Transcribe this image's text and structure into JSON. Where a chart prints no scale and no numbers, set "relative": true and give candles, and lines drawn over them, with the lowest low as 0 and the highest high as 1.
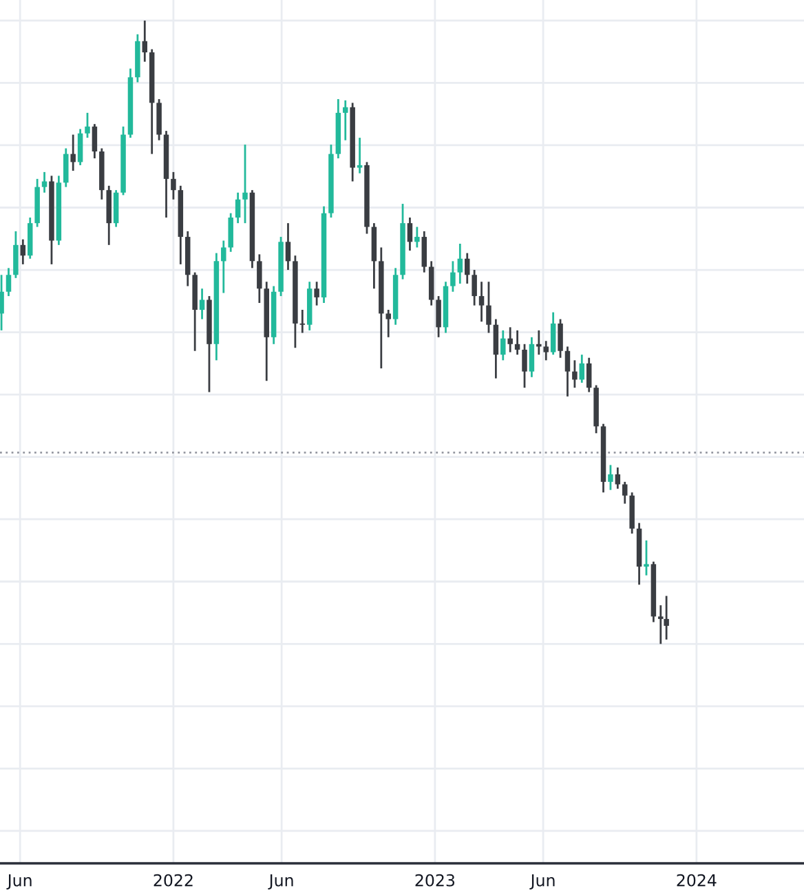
{
  "chart_data": {
    "type": "candlestick",
    "relative": true,
    "grid": true,
    "xlim": [
      "2021-05-04",
      "2024-05-30"
    ],
    "xticks": [
      {
        "value": "2021-06-01",
        "label": "Jun"
      },
      {
        "value": "2022-01-01",
        "label": "2022"
      },
      {
        "value": "2022-06-01",
        "label": "Jun"
      },
      {
        "value": "2023-01-01",
        "label": "2023"
      },
      {
        "value": "2023-06-01",
        "label": "Jun"
      },
      {
        "value": "2024-01-01",
        "label": "2024"
      }
    ],
    "ref_lines": [
      {
        "axis": "y",
        "value": 0.307,
        "color": "#9598a1",
        "line_style": "dotted"
      }
    ],
    "x": [
      "2021-05-06",
      "2021-05-16",
      "2021-05-26",
      "2021-06-05",
      "2021-06-15",
      "2021-06-25",
      "2021-07-05",
      "2021-07-15",
      "2021-07-25",
      "2021-08-04",
      "2021-08-14",
      "2021-08-24",
      "2021-09-03",
      "2021-09-13",
      "2021-09-23",
      "2021-10-03",
      "2021-10-13",
      "2021-10-23",
      "2021-11-02",
      "2021-11-12",
      "2021-11-22",
      "2021-12-02",
      "2021-12-12",
      "2021-12-22",
      "2022-01-01",
      "2022-01-11",
      "2022-01-21",
      "2022-01-31",
      "2022-02-10",
      "2022-02-20",
      "2022-03-02",
      "2022-03-12",
      "2022-03-22",
      "2022-04-01",
      "2022-04-11",
      "2022-04-21",
      "2022-05-01",
      "2022-05-11",
      "2022-05-21",
      "2022-05-31",
      "2022-06-10",
      "2022-06-20",
      "2022-06-30",
      "2022-07-10",
      "2022-07-20",
      "2022-07-30",
      "2022-08-09",
      "2022-08-19",
      "2022-08-29",
      "2022-09-08",
      "2022-09-18",
      "2022-09-28",
      "2022-10-08",
      "2022-10-18",
      "2022-10-28",
      "2022-11-07",
      "2022-11-17",
      "2022-11-27",
      "2022-12-07",
      "2022-12-17",
      "2022-12-27",
      "2023-01-06",
      "2023-01-16",
      "2023-01-26",
      "2023-02-05",
      "2023-02-15",
      "2023-02-25",
      "2023-03-07",
      "2023-03-17",
      "2023-03-27",
      "2023-04-06",
      "2023-04-16",
      "2023-04-26",
      "2023-05-06",
      "2023-05-16",
      "2023-05-26",
      "2023-06-05",
      "2023-06-15",
      "2023-06-25",
      "2023-07-05",
      "2023-07-15",
      "2023-07-25",
      "2023-08-04",
      "2023-08-14",
      "2023-08-24",
      "2023-09-03",
      "2023-09-13",
      "2023-09-23",
      "2023-10-03",
      "2023-10-13",
      "2023-10-23",
      "2023-11-02",
      "2023-11-12",
      "2023-11-20"
    ],
    "ohlc": [
      [
        0.53,
        0.592,
        0.503,
        0.565
      ],
      [
        0.565,
        0.603,
        0.558,
        0.592
      ],
      [
        0.592,
        0.662,
        0.587,
        0.64
      ],
      [
        0.64,
        0.649,
        0.609,
        0.623
      ],
      [
        0.623,
        0.684,
        0.618,
        0.675
      ],
      [
        0.675,
        0.746,
        0.669,
        0.733
      ],
      [
        0.733,
        0.757,
        0.724,
        0.742
      ],
      [
        0.742,
        0.751,
        0.609,
        0.647
      ],
      [
        0.647,
        0.751,
        0.64,
        0.74
      ],
      [
        0.74,
        0.795,
        0.733,
        0.786
      ],
      [
        0.786,
        0.817,
        0.759,
        0.773
      ],
      [
        0.773,
        0.826,
        0.768,
        0.819
      ],
      [
        0.819,
        0.852,
        0.812,
        0.83
      ],
      [
        0.83,
        0.834,
        0.779,
        0.79
      ],
      [
        0.79,
        0.795,
        0.713,
        0.728
      ],
      [
        0.728,
        0.735,
        0.64,
        0.675
      ],
      [
        0.675,
        0.728,
        0.669,
        0.724
      ],
      [
        0.724,
        0.83,
        0.72,
        0.817
      ],
      [
        0.817,
        0.923,
        0.812,
        0.909
      ],
      [
        0.909,
        0.978,
        0.901,
        0.967
      ],
      [
        0.967,
        1.0,
        0.934,
        0.949
      ],
      [
        0.949,
        0.954,
        0.786,
        0.868
      ],
      [
        0.868,
        0.874,
        0.808,
        0.817
      ],
      [
        0.817,
        0.823,
        0.684,
        0.746
      ],
      [
        0.746,
        0.757,
        0.713,
        0.728
      ],
      [
        0.728,
        0.735,
        0.609,
        0.653
      ],
      [
        0.653,
        0.662,
        0.574,
        0.592
      ],
      [
        0.592,
        0.596,
        0.47,
        0.536
      ],
      [
        0.536,
        0.57,
        0.521,
        0.552
      ],
      [
        0.552,
        0.558,
        0.404,
        0.481
      ],
      [
        0.481,
        0.627,
        0.455,
        0.614
      ],
      [
        0.614,
        0.647,
        0.563,
        0.636
      ],
      [
        0.636,
        0.691,
        0.629,
        0.684
      ],
      [
        0.684,
        0.724,
        0.675,
        0.713
      ],
      [
        0.713,
        0.801,
        0.675,
        0.724
      ],
      [
        0.724,
        0.728,
        0.603,
        0.614
      ],
      [
        0.614,
        0.625,
        0.547,
        0.57
      ],
      [
        0.57,
        0.581,
        0.422,
        0.492
      ],
      [
        0.492,
        0.574,
        0.481,
        0.565
      ],
      [
        0.565,
        0.653,
        0.558,
        0.645
      ],
      [
        0.645,
        0.675,
        0.6,
        0.614
      ],
      [
        0.614,
        0.623,
        0.475,
        0.514
      ],
      [
        0.514,
        0.536,
        0.499,
        0.512
      ],
      [
        0.512,
        0.581,
        0.503,
        0.57
      ],
      [
        0.57,
        0.581,
        0.543,
        0.556
      ],
      [
        0.556,
        0.702,
        0.547,
        0.691
      ],
      [
        0.691,
        0.801,
        0.684,
        0.786
      ],
      [
        0.786,
        0.874,
        0.779,
        0.852
      ],
      [
        0.852,
        0.872,
        0.808,
        0.861
      ],
      [
        0.861,
        0.868,
        0.742,
        0.764
      ],
      [
        0.764,
        0.812,
        0.755,
        0.768
      ],
      [
        0.768,
        0.773,
        0.658,
        0.669
      ],
      [
        0.669,
        0.675,
        0.57,
        0.614
      ],
      [
        0.614,
        0.636,
        0.442,
        0.53
      ],
      [
        0.53,
        0.536,
        0.492,
        0.521
      ],
      [
        0.521,
        0.603,
        0.512,
        0.592
      ],
      [
        0.592,
        0.706,
        0.585,
        0.675
      ],
      [
        0.675,
        0.684,
        0.631,
        0.645
      ],
      [
        0.645,
        0.669,
        0.636,
        0.653
      ],
      [
        0.653,
        0.662,
        0.596,
        0.605
      ],
      [
        0.605,
        0.614,
        0.543,
        0.552
      ],
      [
        0.552,
        0.558,
        0.492,
        0.508
      ],
      [
        0.508,
        0.581,
        0.499,
        0.574
      ],
      [
        0.574,
        0.614,
        0.565,
        0.596
      ],
      [
        0.596,
        0.642,
        0.578,
        0.618
      ],
      [
        0.618,
        0.627,
        0.578,
        0.592
      ],
      [
        0.592,
        0.6,
        0.543,
        0.558
      ],
      [
        0.558,
        0.581,
        0.517,
        0.543
      ],
      [
        0.543,
        0.581,
        0.499,
        0.512
      ],
      [
        0.512,
        0.521,
        0.426,
        0.464
      ],
      [
        0.464,
        0.503,
        0.455,
        0.49
      ],
      [
        0.49,
        0.508,
        0.468,
        0.481
      ],
      [
        0.481,
        0.503,
        0.464,
        0.472
      ],
      [
        0.472,
        0.481,
        0.411,
        0.437
      ],
      [
        0.437,
        0.492,
        0.428,
        0.481
      ],
      [
        0.481,
        0.503,
        0.464,
        0.477
      ],
      [
        0.477,
        0.486,
        0.455,
        0.468
      ],
      [
        0.468,
        0.532,
        0.464,
        0.514
      ],
      [
        0.514,
        0.521,
        0.459,
        0.47
      ],
      [
        0.47,
        0.477,
        0.397,
        0.437
      ],
      [
        0.437,
        0.455,
        0.411,
        0.424
      ],
      [
        0.424,
        0.464,
        0.419,
        0.45
      ],
      [
        0.45,
        0.459,
        0.404,
        0.411
      ],
      [
        0.411,
        0.415,
        0.338,
        0.349
      ],
      [
        0.349,
        0.353,
        0.243,
        0.26
      ],
      [
        0.26,
        0.287,
        0.247,
        0.272
      ],
      [
        0.272,
        0.283,
        0.249,
        0.256
      ],
      [
        0.256,
        0.26,
        0.225,
        0.238
      ],
      [
        0.238,
        0.243,
        0.177,
        0.185
      ],
      [
        0.185,
        0.194,
        0.095,
        0.124
      ],
      [
        0.124,
        0.166,
        0.11,
        0.128
      ],
      [
        0.128,
        0.132,
        0.035,
        0.044
      ],
      [
        0.044,
        0.062,
        0.0,
        0.04
      ],
      [
        0.04,
        0.077,
        0.007,
        0.029
      ]
    ],
    "colors": [
      "#22b99b",
      "#22b99b",
      "#22b99b",
      "#3a3d42",
      "#22b99b",
      "#22b99b",
      "#22b99b",
      "#3a3d42",
      "#22b99b",
      "#22b99b",
      "#3a3d42",
      "#22b99b",
      "#22b99b",
      "#3a3d42",
      "#3a3d42",
      "#3a3d42",
      "#22b99b",
      "#22b99b",
      "#22b99b",
      "#22b99b",
      "#3a3d42",
      "#3a3d42",
      "#3a3d42",
      "#3a3d42",
      "#3a3d42",
      "#3a3d42",
      "#3a3d42",
      "#3a3d42",
      "#22b99b",
      "#3a3d42",
      "#22b99b",
      "#22b99b",
      "#22b99b",
      "#22b99b",
      "#22b99b",
      "#3a3d42",
      "#3a3d42",
      "#3a3d42",
      "#22b99b",
      "#22b99b",
      "#3a3d42",
      "#3a3d42",
      "#3a3d42",
      "#22b99b",
      "#3a3d42",
      "#22b99b",
      "#22b99b",
      "#22b99b",
      "#22b99b",
      "#3a3d42",
      "#22b99b",
      "#3a3d42",
      "#3a3d42",
      "#3a3d42",
      "#3a3d42",
      "#22b99b",
      "#22b99b",
      "#3a3d42",
      "#22b99b",
      "#3a3d42",
      "#3a3d42",
      "#3a3d42",
      "#22b99b",
      "#22b99b",
      "#22b99b",
      "#3a3d42",
      "#3a3d42",
      "#3a3d42",
      "#3a3d42",
      "#3a3d42",
      "#22b99b",
      "#3a3d42",
      "#3a3d42",
      "#3a3d42",
      "#22b99b",
      "#3a3d42",
      "#3a3d42",
      "#22b99b",
      "#3a3d42",
      "#3a3d42",
      "#3a3d42",
      "#22b99b",
      "#3a3d42",
      "#3a3d42",
      "#3a3d42",
      "#22b99b",
      "#3a3d42",
      "#3a3d42",
      "#3a3d42",
      "#3a3d42",
      "#22b99b",
      "#3a3d42",
      "#3a3d42",
      "#3a3d42"
    ]
  }
}
